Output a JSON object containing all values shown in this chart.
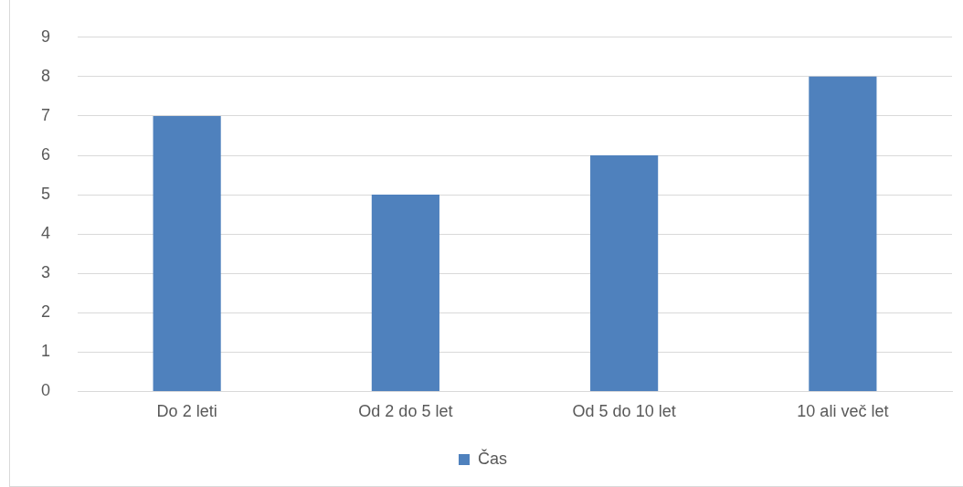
{
  "chart_data": {
    "type": "bar",
    "categories": [
      "Do 2 leti",
      "Od 2 do 5 let",
      "Od 5 do 10 let",
      "10 ali več let"
    ],
    "series": [
      {
        "name": "Čas",
        "color": "#4f81bd",
        "values": [
          7,
          5,
          6,
          8
        ]
      }
    ],
    "ylim": [
      0,
      9
    ],
    "yticks": [
      0,
      1,
      2,
      3,
      4,
      5,
      6,
      7,
      8,
      9
    ],
    "grid": "y",
    "legend": "bottom"
  }
}
